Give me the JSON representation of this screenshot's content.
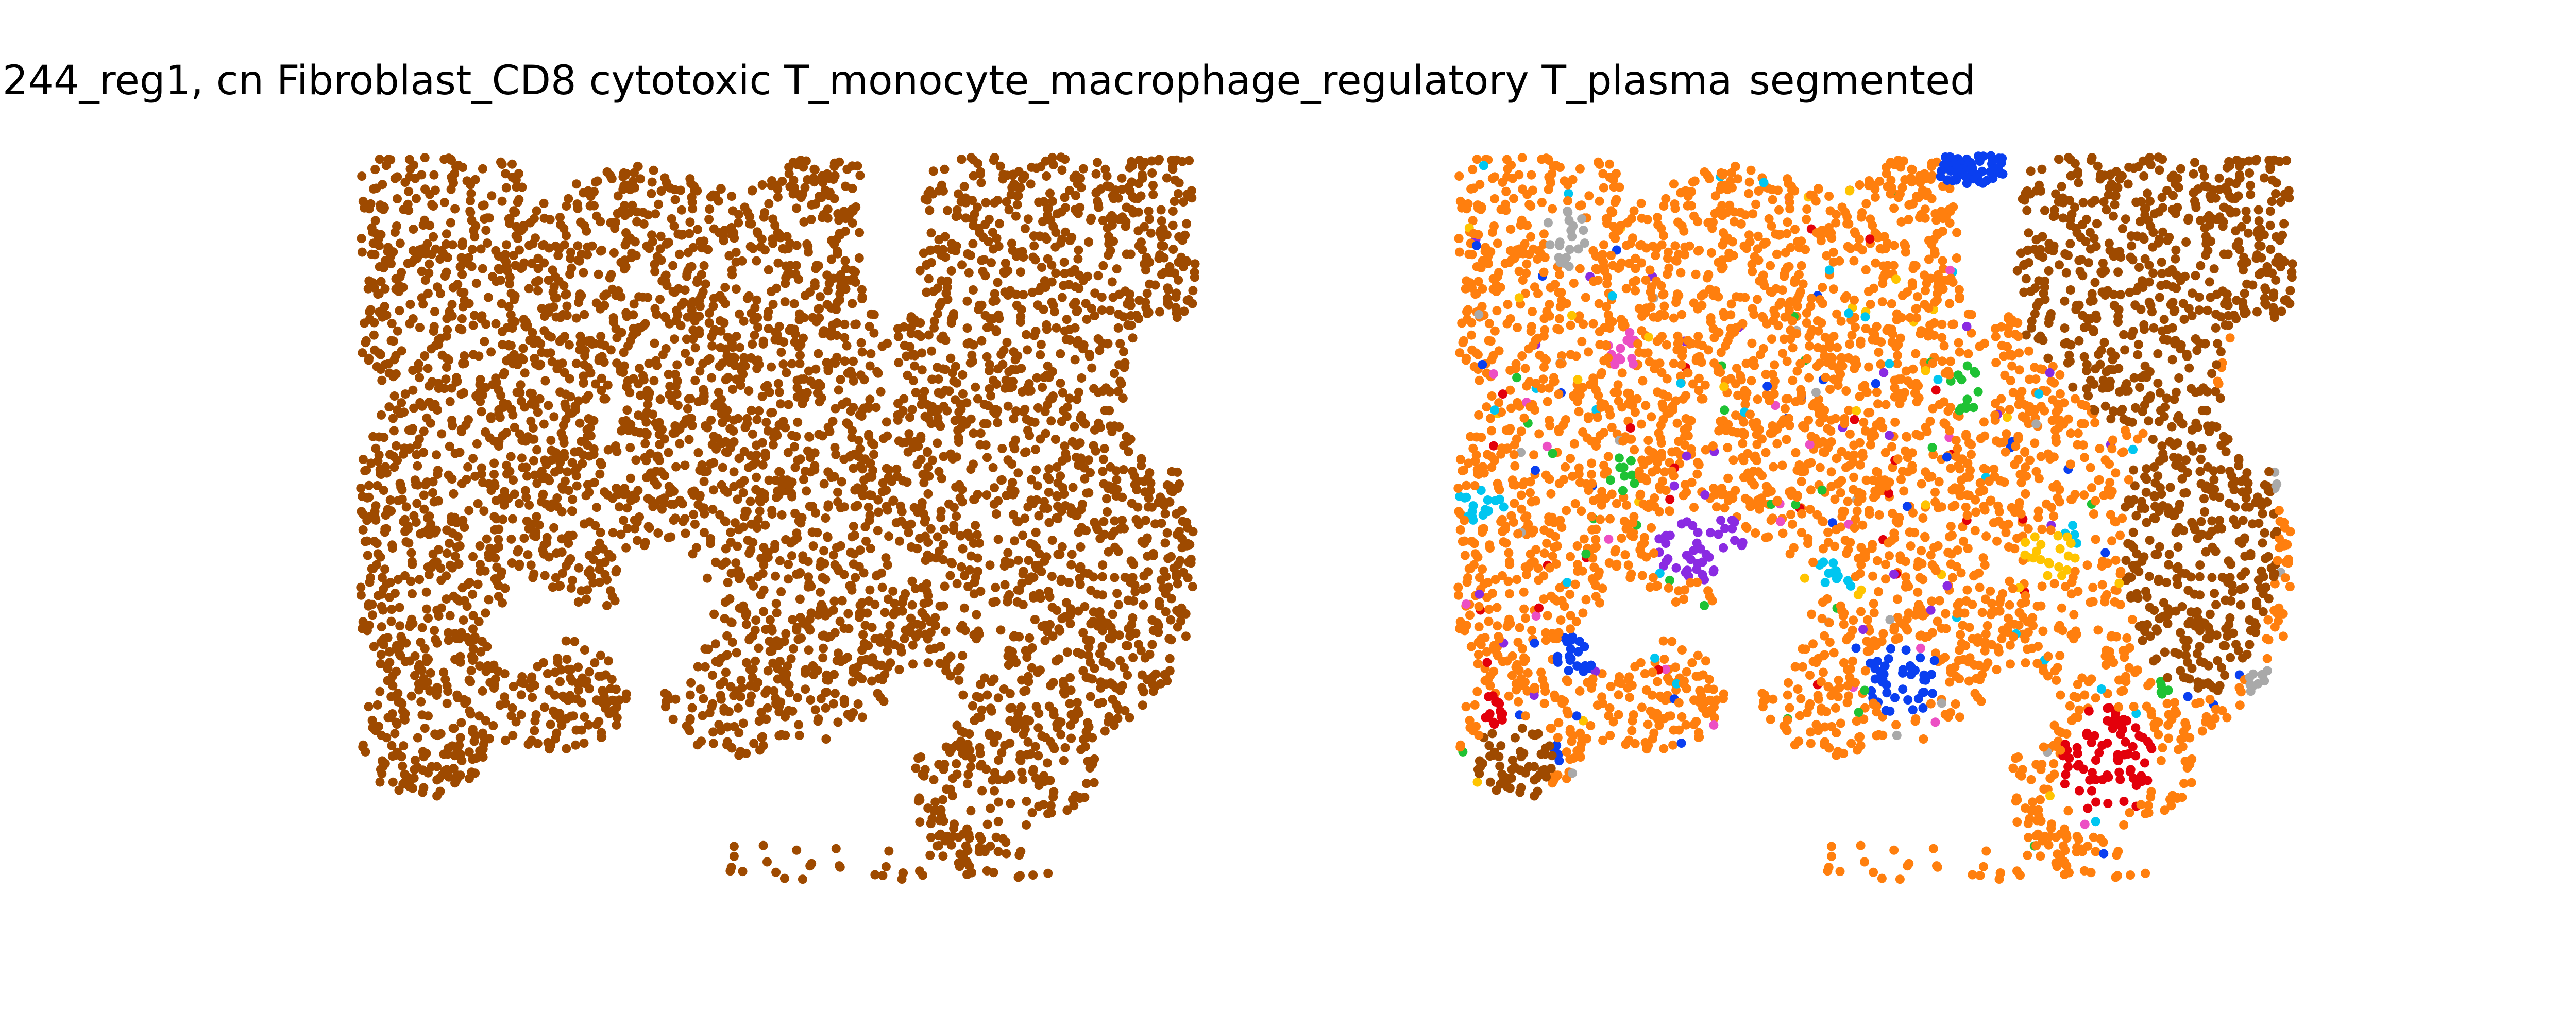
{
  "titles": {
    "left": ".244_reg1, cn Fibroblast_CD8 cytotoxic T_monocyte_macrophage_regulatory T_plasma",
    "right": "segmented"
  },
  "colors": {
    "left_cells": "#9e4a00",
    "segments": {
      "orange": "#ff7f0e",
      "brown": "#9e4a00",
      "blue": "#0a3ff0",
      "purple": "#8a2be2",
      "green": "#1fc234",
      "red": "#e3000b",
      "pink": "#ec4fc4",
      "gray": "#a9a9a9",
      "cyan": "#00c6f0",
      "yellow": "#ffc400"
    }
  },
  "chart_data": [
    {
      "type": "scatter",
      "title": ".244_reg1, cn Fibroblast_CD8 cytotoxic T_monocyte_macrophage_regulatory T_plasma",
      "xlabel": "",
      "ylabel": "",
      "axes": "off",
      "series": [
        {
          "color": "#9e4a00"
        }
      ]
    },
    {
      "type": "scatter",
      "title": "segmented",
      "xlabel": "",
      "ylabel": "",
      "axes": "off",
      "series": [
        {
          "color": "#ff7f0e"
        },
        {
          "color": "#9e4a00"
        },
        {
          "color": "#0a3ff0"
        },
        {
          "color": "#8a2be2"
        },
        {
          "color": "#1fc234"
        },
        {
          "color": "#e3000b"
        },
        {
          "color": "#ec4fc4"
        },
        {
          "color": "#a9a9a9"
        },
        {
          "color": "#00c6f0"
        },
        {
          "color": "#ffc400"
        }
      ]
    }
  ]
}
